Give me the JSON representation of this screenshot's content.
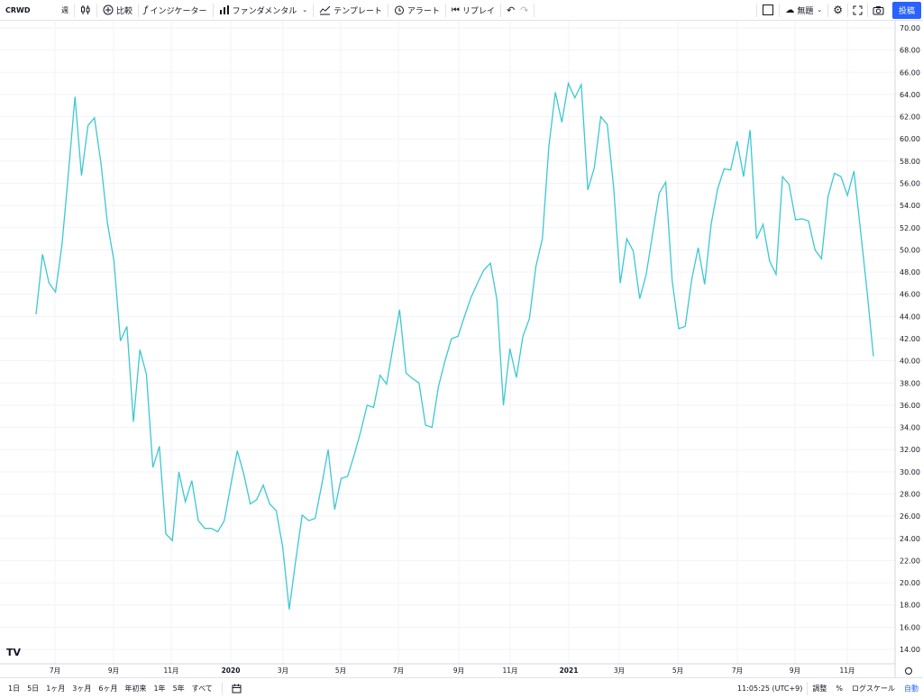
{
  "toolbar": {
    "symbol": "CRWD",
    "interval": "週",
    "compare": "比較",
    "indicators": "インジケーター",
    "fundamentals": "ファンダメンタル",
    "templates": "テンプレート",
    "alert": "アラート",
    "replay": "リプレイ",
    "theme": "無題",
    "post": "投稿"
  },
  "bottombar": {
    "ranges": [
      "1日",
      "5日",
      "1ヶ月",
      "3ヶ月",
      "6ヶ月",
      "年初来",
      "1年",
      "5年",
      "すべて"
    ],
    "time": "11:05:25 (UTC+9)",
    "adjust": "調整",
    "percent": "%",
    "log": "ログスケール",
    "auto": "自動"
  },
  "colors": {
    "line": "#3cc8d2",
    "grid": "#f0f3fa",
    "accent": "#2962ff"
  },
  "icons": [
    "candles-icon",
    "plus-circle-icon",
    "fx-icon",
    "bar-chart-icon",
    "template-icon",
    "alarm-icon",
    "replay-icon",
    "undo-icon",
    "redo-icon",
    "layout-icon",
    "cloud-icon",
    "gear-icon",
    "fullscreen-icon",
    "camera-icon",
    "calendar-icon",
    "tradingview-logo-icon"
  ],
  "chart_data": {
    "type": "line",
    "series": [
      {
        "values": [
          44.2,
          49.6,
          47.0,
          46.2,
          50.5,
          57.0,
          63.8,
          56.7,
          61.2,
          61.9,
          57.8,
          52.4,
          49.0,
          41.8,
          43.1,
          34.5,
          41.0,
          38.8,
          30.4,
          32.3,
          24.4,
          23.8,
          30.0,
          27.3,
          29.2,
          25.6,
          24.9,
          24.9,
          24.6,
          25.6,
          28.8,
          31.9,
          29.8,
          27.1,
          27.5,
          28.8,
          27.1,
          26.5,
          23.2,
          17.6,
          22.0,
          26.1,
          25.6,
          25.8,
          28.8,
          32.0,
          26.6,
          29.4,
          29.6,
          31.5,
          33.6,
          36.0,
          35.8,
          38.7,
          37.9,
          41.3,
          44.6,
          38.9,
          38.4,
          38.0,
          34.2,
          34.0,
          37.7,
          40.0,
          42.0,
          42.2,
          44.0,
          45.7,
          47.0,
          48.2,
          48.8,
          45.5,
          36.0,
          41.1,
          38.5,
          42.2,
          43.8,
          48.5,
          51.0,
          59.3,
          64.2,
          61.5,
          65.0,
          63.7,
          64.9,
          55.4,
          57.4,
          62.0,
          61.3,
          55.5,
          47.0,
          51.0,
          49.9,
          45.6,
          47.8,
          51.5,
          55.1,
          56.1,
          47.2,
          42.9,
          43.1,
          47.3,
          50.2,
          46.9,
          52.3,
          55.5,
          57.3,
          57.2,
          59.8,
          56.6,
          60.8,
          51.0,
          52.3,
          49.0,
          47.8,
          56.6,
          55.9,
          52.7,
          52.8,
          52.6,
          50.0,
          49.2,
          54.8,
          56.9,
          56.6,
          54.9,
          57.1,
          51.8,
          46.4,
          40.4
        ]
      }
    ],
    "x_labels": [
      "7月",
      "9月",
      "11月",
      "2020",
      "3月",
      "5月",
      "7月",
      "9月",
      "11月",
      "2021",
      "3月",
      "5月",
      "7月",
      "9月",
      "11月"
    ],
    "y_ticks": [
      "70.00",
      "68.00",
      "66.00",
      "64.00",
      "62.00",
      "60.00",
      "58.00",
      "56.00",
      "54.00",
      "52.00",
      "50.00",
      "48.00",
      "46.00",
      "44.00",
      "42.00",
      "40.00",
      "38.00",
      "36.00",
      "34.00",
      "32.00",
      "30.00",
      "28.00",
      "26.00",
      "24.00",
      "22.00",
      "20.00",
      "18.00",
      "16.00",
      "14.00"
    ],
    "ylim": [
      13,
      71
    ],
    "grid": true,
    "axis_position": "right"
  }
}
